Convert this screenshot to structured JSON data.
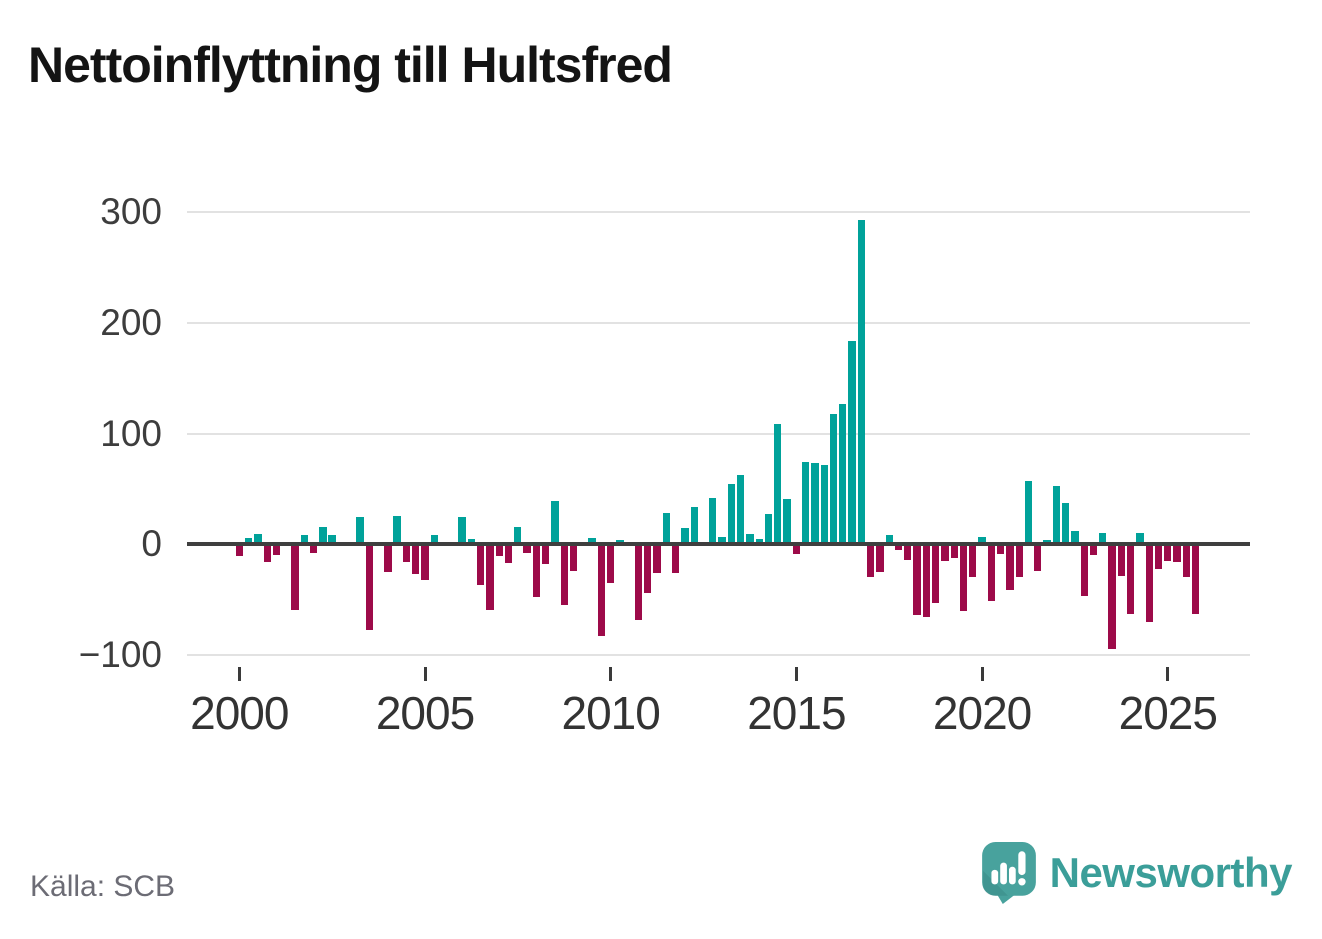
{
  "title": "Nettoinflyttning till Hultsfred",
  "source": "Källa: SCB",
  "branding": {
    "name": "Newsworthy",
    "icon": "newsworthy-speech-bubble-chart-icon"
  },
  "colors": {
    "positive_bar": "#00a29a",
    "negative_bar": "#9d0a49",
    "zero_line": "#3f3f3f",
    "grid_line": "#e2e2e2",
    "axis_text": "#3d3d3d",
    "title_text": "#141414",
    "source_text": "#6c6c75",
    "brand_teal": "#3b9e99",
    "icon_teal": "#48a29d"
  },
  "chart_data": {
    "type": "bar",
    "title": "Nettoinflyttning till Hultsfred",
    "frequency": "quarterly",
    "x_start": "2000Q1",
    "x_end": "2025Q4",
    "values": [
      -11,
      6,
      9,
      -16,
      -10,
      0,
      -59,
      8,
      -8,
      16,
      8,
      0,
      0,
      25,
      -77,
      0,
      -25,
      26,
      -16,
      -27,
      -32,
      8,
      0,
      0,
      25,
      5,
      -37,
      -59,
      -11,
      -17,
      16,
      -8,
      -48,
      -18,
      39,
      -55,
      -24,
      0,
      6,
      -83,
      -35,
      4,
      0,
      -68,
      -44,
      -26,
      28,
      -26,
      15,
      34,
      0,
      42,
      7,
      54,
      63,
      9,
      5,
      27,
      109,
      41,
      -9,
      74,
      73,
      72,
      118,
      127,
      184,
      293,
      -30,
      -25,
      8,
      -5,
      -14,
      -64,
      -66,
      -53,
      -15,
      -12,
      -60,
      -30,
      7,
      -51,
      -9,
      -41,
      -30,
      57,
      -24,
      4,
      53,
      37,
      12,
      -47,
      -10,
      10,
      -95,
      -29,
      -63,
      10,
      -70,
      -22,
      -15,
      -16,
      -30,
      -63
    ],
    "ylim": [
      -100,
      300
    ],
    "yticks": [
      300,
      200,
      100,
      0,
      -100
    ],
    "ytick_labels": [
      "300",
      "200",
      "100",
      "0",
      "−100"
    ],
    "xticks": [
      2000,
      2005,
      2010,
      2015,
      2020,
      2025
    ],
    "xtick_labels": [
      "2000",
      "2005",
      "2010",
      "2015",
      "2020",
      "2025"
    ],
    "grid": "horizontal",
    "legend": "none"
  }
}
